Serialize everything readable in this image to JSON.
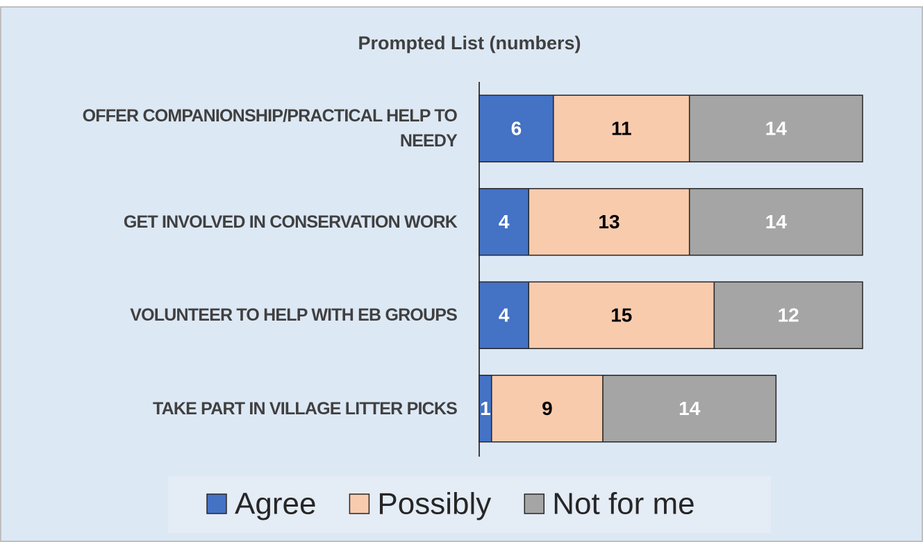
{
  "chart_data": {
    "type": "bar",
    "orientation": "horizontal",
    "stacked": true,
    "title": "Prompted  List (numbers)",
    "categories": [
      "OFFER COMPANIONSHIP/PRACTICAL HELP TO NEEDY",
      "GET INVOLVED IN CONSERVATION WORK",
      "VOLUNTEER TO HELP WITH EB GROUPS",
      "TAKE PART IN VILLAGE LITTER PICKS"
    ],
    "series": [
      {
        "name": "Agree",
        "color": "#4472c4",
        "label_color": "#ffffff",
        "values": [
          6,
          4,
          4,
          1
        ]
      },
      {
        "name": "Possibly",
        "color": "#f8cbad",
        "label_color": "#000000",
        "values": [
          11,
          13,
          15,
          9
        ]
      },
      {
        "name": "Not for me",
        "color": "#a5a5a5",
        "label_color": "#ffffff",
        "values": [
          14,
          14,
          12,
          14
        ]
      }
    ],
    "xlim": [
      0,
      31
    ],
    "legend": "bottom"
  }
}
